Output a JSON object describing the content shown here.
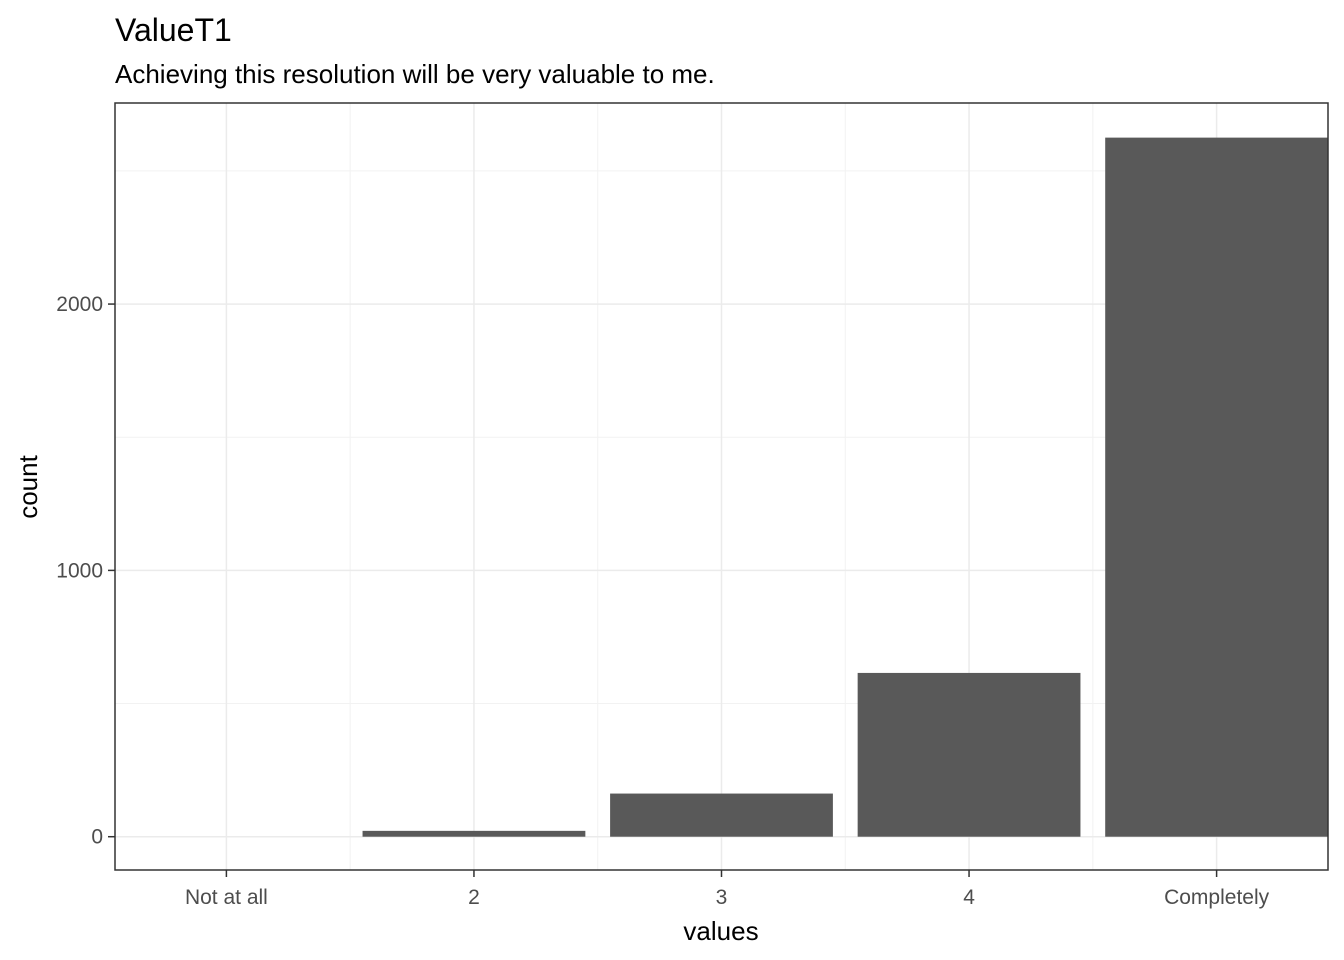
{
  "chart_data": {
    "type": "bar",
    "title": "ValueT1",
    "subtitle": "Achieving this resolution will be very valuable to me.",
    "xlabel": "values",
    "ylabel": "count",
    "categories": [
      "Not at all",
      "2",
      "3",
      "4",
      "Completely"
    ],
    "values": [
      0,
      22,
      162,
      615,
      2625
    ],
    "ylim": [
      -125,
      2755
    ],
    "yticks": [
      0,
      1000,
      2000
    ],
    "ytick_labels": [
      "0",
      "1000",
      "2000"
    ],
    "grid": true,
    "legend": "none",
    "bar_color": "#595959"
  }
}
